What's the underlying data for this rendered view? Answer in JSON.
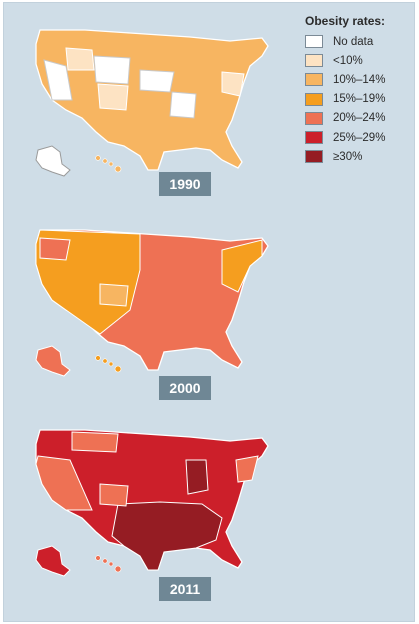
{
  "legend": {
    "title": "Obesity rates:",
    "items": [
      {
        "label": "No data",
        "color": "#ffffff"
      },
      {
        "label": "<10%",
        "color": "#fde3c3"
      },
      {
        "label": "10%–14%",
        "color": "#f7b561"
      },
      {
        "label": "15%–19%",
        "color": "#f59e1f"
      },
      {
        "label": "20%–24%",
        "color": "#ee7154"
      },
      {
        "label": "25%–29%",
        "color": "#cc1f2a"
      },
      {
        "label": "≥30%",
        "color": "#951c23"
      }
    ]
  },
  "maps": [
    {
      "year": "1990",
      "base_color": "#f7b561",
      "highlight_color": "#fde3c3",
      "alaska_color": "#ffffff",
      "hawaii_color": "#f7b561"
    },
    {
      "year": "2000",
      "base_color": "#ee7154",
      "highlight_color": "#f59e1f",
      "alaska_color": "#ee7154",
      "hawaii_color": "#f59e1f"
    },
    {
      "year": "2011",
      "base_color": "#cc1f2a",
      "highlight_color": "#951c23",
      "alaska_color": "#cc1f2a",
      "hawaii_color": "#ee7154"
    }
  ]
}
